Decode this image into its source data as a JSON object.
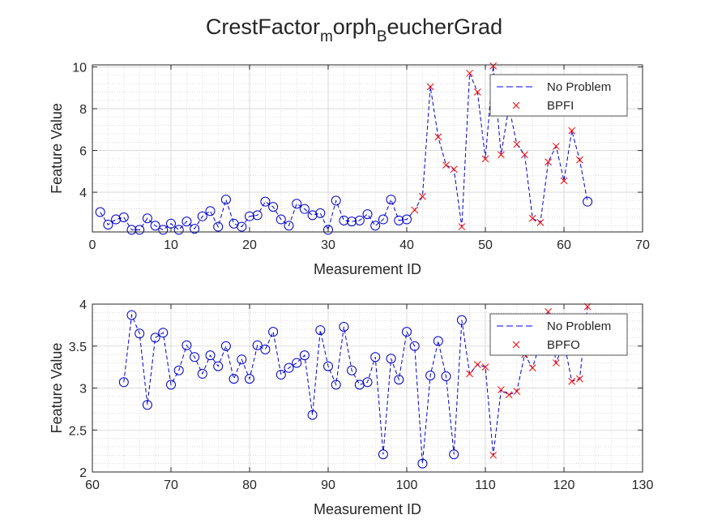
{
  "title": {
    "parts": [
      "CrestFactor",
      "m",
      "orph",
      "B",
      "eucherGrad"
    ]
  },
  "chart_data": [
    {
      "type": "line",
      "xlabel": "Measurement ID",
      "ylabel": "Feature Value",
      "xlim": [
        0,
        70
      ],
      "ylim": [
        2.1,
        10.1
      ],
      "xticks": [
        0,
        10,
        20,
        30,
        40,
        50,
        60,
        70
      ],
      "yticks": [
        4,
        6,
        8,
        10
      ],
      "grid": "on",
      "minor_grid": "on",
      "legend_position": "top-right",
      "legend": [
        {
          "label": "No Problem",
          "style": "dashed-line",
          "color": "#0000ff"
        },
        {
          "label": "BPFI",
          "style": "x-marker",
          "color": "#ff0000"
        }
      ],
      "line": {
        "color": "#0000cc",
        "x": [
          1,
          2,
          3,
          4,
          5,
          6,
          7,
          8,
          9,
          10,
          11,
          12,
          13,
          14,
          15,
          16,
          17,
          18,
          19,
          20,
          21,
          22,
          23,
          24,
          25,
          26,
          27,
          28,
          29,
          30,
          31,
          32,
          33,
          34,
          35,
          36,
          37,
          38,
          39,
          40,
          41,
          42,
          43,
          44,
          45,
          46,
          47,
          48,
          49,
          50,
          51,
          52,
          53,
          54,
          55,
          56,
          57,
          58,
          59,
          60,
          61,
          62,
          63
        ],
        "y": [
          3.05,
          2.45,
          2.7,
          2.8,
          2.2,
          2.2,
          2.75,
          2.4,
          2.2,
          2.5,
          2.2,
          2.6,
          2.25,
          2.85,
          3.1,
          2.35,
          3.65,
          2.5,
          2.35,
          2.85,
          2.9,
          3.55,
          3.3,
          2.7,
          2.4,
          3.45,
          3.2,
          2.9,
          3.0,
          2.2,
          3.6,
          2.65,
          2.6,
          2.65,
          2.95,
          2.4,
          2.7,
          3.65,
          2.65,
          2.7,
          3.15,
          3.8,
          9.05,
          6.65,
          5.3,
          5.1,
          2.35,
          9.7,
          8.8,
          5.6,
          10.05,
          5.8,
          8.1,
          6.3,
          5.8,
          2.75,
          2.55,
          5.45,
          6.2,
          4.55,
          6.95,
          5.55,
          3.55
        ]
      },
      "no_problem_markers": {
        "color": "#0000cc",
        "x": [
          1,
          2,
          3,
          4,
          5,
          6,
          7,
          8,
          9,
          10,
          11,
          12,
          13,
          14,
          15,
          16,
          17,
          18,
          19,
          20,
          21,
          22,
          23,
          24,
          25,
          26,
          27,
          28,
          29,
          30,
          31,
          32,
          33,
          34,
          35,
          36,
          37,
          38,
          39,
          40,
          63
        ],
        "y": [
          3.05,
          2.45,
          2.7,
          2.8,
          2.2,
          2.2,
          2.75,
          2.4,
          2.2,
          2.5,
          2.2,
          2.6,
          2.25,
          2.85,
          3.1,
          2.35,
          3.65,
          2.5,
          2.35,
          2.85,
          2.9,
          3.55,
          3.3,
          2.7,
          2.4,
          3.45,
          3.2,
          2.9,
          3.0,
          2.2,
          3.6,
          2.65,
          2.6,
          2.65,
          2.95,
          2.4,
          2.7,
          3.65,
          2.65,
          2.7,
          3.55
        ]
      },
      "fault_markers": {
        "color": "#ff0000",
        "x": [
          41,
          42,
          43,
          44,
          45,
          46,
          47,
          48,
          49,
          50,
          51,
          52,
          53,
          54,
          55,
          56,
          57,
          58,
          59,
          60,
          61,
          62
        ],
        "y": [
          3.15,
          3.8,
          9.05,
          6.65,
          5.3,
          5.1,
          2.35,
          9.7,
          8.8,
          5.6,
          10.05,
          5.8,
          8.1,
          6.3,
          5.8,
          2.75,
          2.55,
          5.45,
          6.2,
          4.55,
          6.95,
          5.55
        ]
      }
    },
    {
      "type": "line",
      "xlabel": "Measurement ID",
      "ylabel": "Feature Value",
      "xlim": [
        60,
        130
      ],
      "ylim": [
        2,
        4
      ],
      "xticks": [
        60,
        70,
        80,
        90,
        100,
        110,
        120,
        130
      ],
      "yticks": [
        2,
        2.5,
        3,
        3.5,
        4
      ],
      "grid": "on",
      "minor_grid": "on",
      "legend_position": "top-right",
      "legend": [
        {
          "label": "No Problem",
          "style": "dashed-line",
          "color": "#0000ff"
        },
        {
          "label": "BPFO",
          "style": "x-marker",
          "color": "#ff0000"
        }
      ],
      "line": {
        "color": "#0000cc",
        "x": [
          64,
          65,
          66,
          67,
          68,
          69,
          70,
          71,
          72,
          73,
          74,
          75,
          76,
          77,
          78,
          79,
          80,
          81,
          82,
          83,
          84,
          85,
          86,
          87,
          88,
          89,
          90,
          91,
          92,
          93,
          94,
          95,
          96,
          97,
          98,
          99,
          100,
          101,
          102,
          103,
          104,
          105,
          106,
          107,
          108,
          109,
          110,
          111,
          112,
          113,
          114,
          115,
          116,
          117,
          118,
          119,
          120,
          121,
          122,
          123
        ],
        "y": [
          3.07,
          3.87,
          3.65,
          2.8,
          3.6,
          3.66,
          3.04,
          3.21,
          3.51,
          3.37,
          3.17,
          3.39,
          3.26,
          3.5,
          3.11,
          3.34,
          3.11,
          3.51,
          3.46,
          3.67,
          3.16,
          3.24,
          3.3,
          3.39,
          2.68,
          3.69,
          3.26,
          3.04,
          3.73,
          3.21,
          3.04,
          3.07,
          3.37,
          2.21,
          3.35,
          3.1,
          3.67,
          3.5,
          2.1,
          3.15,
          3.56,
          3.14,
          2.21,
          3.81,
          3.17,
          3.28,
          3.25,
          2.2,
          2.98,
          2.92,
          2.96,
          3.4,
          3.24,
          3.55,
          3.91,
          3.3,
          3.55,
          3.08,
          3.11,
          3.97
        ]
      },
      "no_problem_markers": {
        "color": "#0000cc",
        "x": [
          64,
          65,
          66,
          67,
          68,
          69,
          70,
          71,
          72,
          73,
          74,
          75,
          76,
          77,
          78,
          79,
          80,
          81,
          82,
          83,
          84,
          85,
          86,
          87,
          88,
          89,
          90,
          91,
          92,
          93,
          94,
          95,
          96,
          97,
          98,
          99,
          100,
          101,
          102,
          103,
          104,
          105,
          106,
          107
        ],
        "y": [
          3.07,
          3.87,
          3.65,
          2.8,
          3.6,
          3.66,
          3.04,
          3.21,
          3.51,
          3.37,
          3.17,
          3.39,
          3.26,
          3.5,
          3.11,
          3.34,
          3.11,
          3.51,
          3.46,
          3.67,
          3.16,
          3.24,
          3.3,
          3.39,
          2.68,
          3.69,
          3.26,
          3.04,
          3.73,
          3.21,
          3.04,
          3.07,
          3.37,
          2.21,
          3.35,
          3.1,
          3.67,
          3.5,
          2.1,
          3.15,
          3.56,
          3.14,
          2.21,
          3.81
        ]
      },
      "fault_markers": {
        "color": "#ff0000",
        "x": [
          108,
          109,
          110,
          111,
          112,
          113,
          114,
          115,
          116,
          117,
          118,
          119,
          120,
          121,
          122,
          123
        ],
        "y": [
          3.17,
          3.28,
          3.25,
          2.2,
          2.98,
          2.92,
          2.96,
          3.4,
          3.24,
          3.55,
          3.91,
          3.3,
          3.55,
          3.08,
          3.11,
          3.97
        ]
      }
    }
  ]
}
